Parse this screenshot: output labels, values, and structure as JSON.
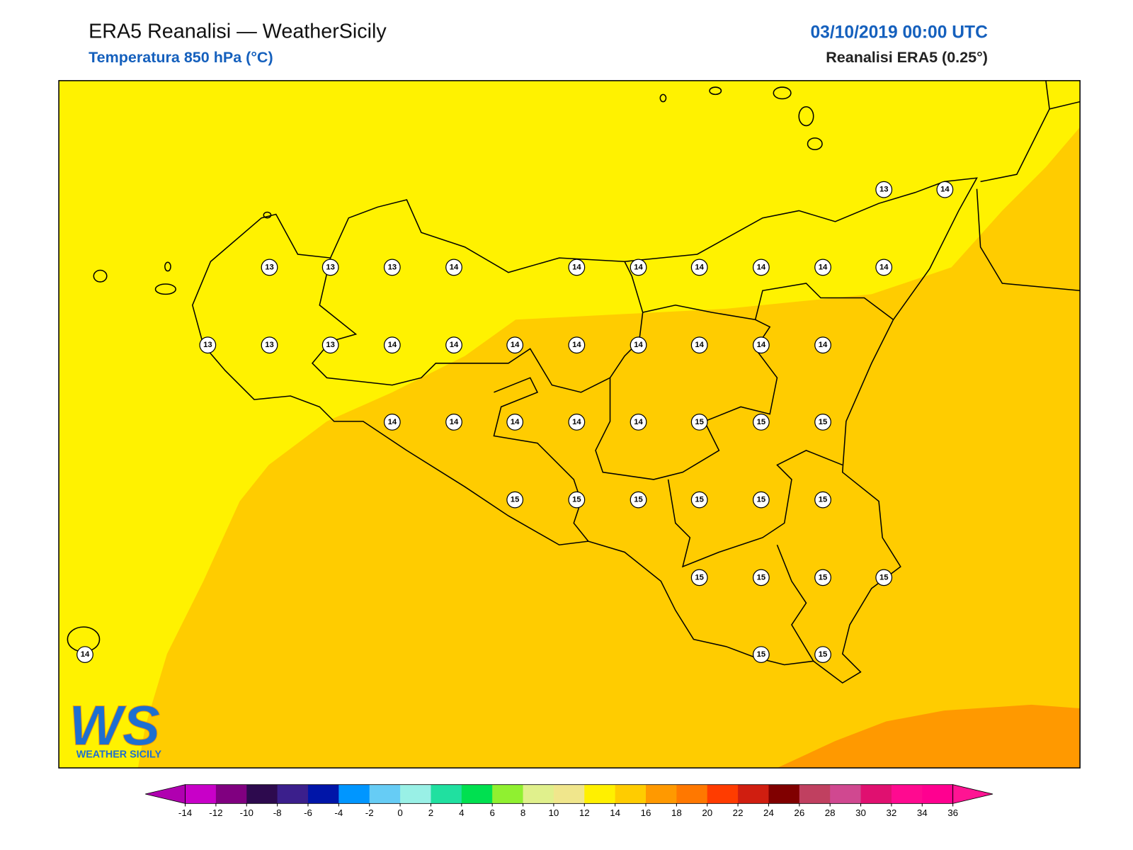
{
  "header": {
    "title": "ERA5 Reanalisi — WeatherSicily",
    "subtitle": "Temperatura 850 hPa (°C)",
    "date": "03/10/2019 00:00 UTC",
    "source": "Reanalisi ERA5 (0.25°)"
  },
  "stations": {
    "values": [
      13,
      14,
      13,
      13,
      13,
      14,
      14,
      14,
      14,
      14,
      14,
      14,
      13,
      13,
      13,
      14,
      14,
      14,
      14,
      14,
      14,
      14,
      14,
      14,
      14,
      14,
      14,
      14,
      15,
      15,
      15,
      15,
      15,
      15,
      15,
      15,
      15,
      15,
      15,
      15,
      15,
      14,
      15,
      15
    ]
  },
  "colorbar": {
    "ticks": [
      -14,
      -12,
      -10,
      -8,
      -6,
      -4,
      -2,
      0,
      2,
      4,
      6,
      8,
      10,
      12,
      14,
      16,
      18,
      20,
      22,
      24,
      26,
      28,
      30,
      32,
      34,
      36
    ],
    "colors": [
      "#c800c8",
      "#800080",
      "#2d0a4e",
      "#3b1f8c",
      "#0015a8",
      "#0096ff",
      "#66ccf5",
      "#99f0e6",
      "#20e0a0",
      "#00e050",
      "#90f030",
      "#e0f08c",
      "#f0e68c",
      "#fff000",
      "#ffcc00",
      "#ff9900",
      "#ff7800",
      "#ff3c00",
      "#d01e10",
      "#800000",
      "#c04060",
      "#d04890",
      "#e01070",
      "#ff0a90",
      "#ff0090"
    ],
    "extend_colors": [
      "#b000b0",
      "#ff1493"
    ]
  },
  "logo": {
    "initials": "WS",
    "name": "WEATHER SICILY"
  }
}
